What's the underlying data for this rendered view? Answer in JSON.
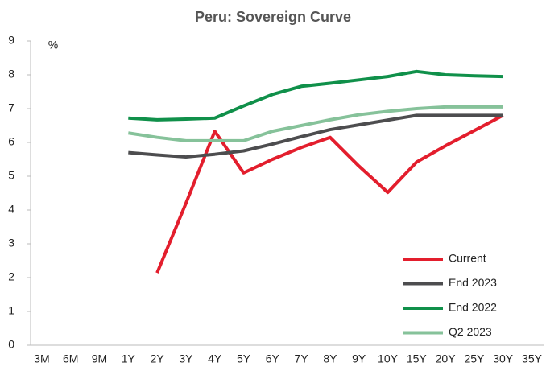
{
  "chart_data": {
    "type": "line",
    "title": "Peru: Sovereign Curve",
    "y_label": "%",
    "categories": [
      "3M",
      "6M",
      "9M",
      "1Y",
      "2Y",
      "3Y",
      "4Y",
      "5Y",
      "6Y",
      "7Y",
      "8Y",
      "9Y",
      "10Y",
      "15Y",
      "20Y",
      "25Y",
      "30Y",
      "35Y"
    ],
    "series": [
      {
        "name": "Current",
        "color": "#e31e2d",
        "values": [
          null,
          null,
          null,
          null,
          2.14,
          4.2,
          6.33,
          5.1,
          5.5,
          5.85,
          6.15,
          5.3,
          4.52,
          5.42,
          5.9,
          6.35,
          6.8,
          null
        ]
      },
      {
        "name": "End 2023",
        "color": "#4d4d4f",
        "values": [
          null,
          null,
          null,
          5.7,
          5.63,
          5.57,
          5.65,
          5.75,
          5.95,
          6.17,
          6.38,
          6.52,
          6.66,
          6.8,
          6.8,
          6.8,
          6.8,
          null
        ]
      },
      {
        "name": "End 2022",
        "color": "#10904a",
        "values": [
          null,
          null,
          null,
          6.72,
          6.67,
          6.69,
          6.72,
          7.08,
          7.42,
          7.66,
          7.75,
          7.85,
          7.95,
          8.1,
          8.0,
          7.97,
          7.95,
          null
        ]
      },
      {
        "name": "Q2 2023",
        "color": "#86c29a",
        "values": [
          null,
          null,
          null,
          6.28,
          6.15,
          6.05,
          6.05,
          6.05,
          6.33,
          6.5,
          6.67,
          6.82,
          6.92,
          7.0,
          7.05,
          7.05,
          7.05,
          null
        ]
      }
    ],
    "ylim": [
      0,
      9
    ],
    "yticks": [
      0,
      1,
      2,
      3,
      4,
      5,
      6,
      7,
      8,
      9
    ],
    "grid": false,
    "legend": "lower right"
  }
}
